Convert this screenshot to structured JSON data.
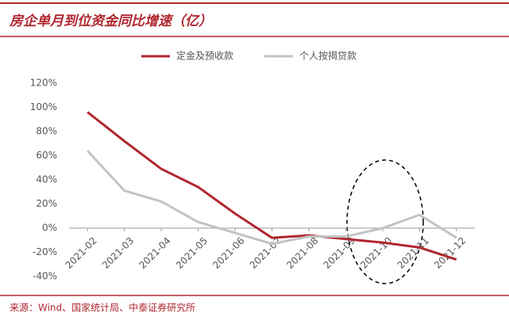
{
  "chart_data": {
    "type": "line",
    "title": "房企单月到位资金同比增速（亿）",
    "source": "来源：Wind、国家统计局、中泰证券研究所",
    "categories": [
      "2021-02",
      "2021-03",
      "2021-04",
      "2021-05",
      "2021-06",
      "2021-07",
      "2021-08",
      "2021-09",
      "2021-10",
      "2021-11",
      "2021-12"
    ],
    "series": [
      {
        "name": "定金及预收款",
        "color": "#b0272f",
        "values": [
          96,
          72,
          49,
          34,
          12,
          -8,
          -6,
          -9,
          -12,
          -16,
          -26
        ]
      },
      {
        "name": "个人按揭贷款",
        "color": "#c3c3c3",
        "values": [
          64,
          31,
          22,
          5,
          -4,
          -13,
          -7,
          -7,
          0,
          11,
          -8
        ]
      }
    ],
    "ylim": [
      -40,
      120
    ],
    "yticks": [
      {
        "value": -40,
        "label": "-40%"
      },
      {
        "value": -20,
        "label": "-20%"
      },
      {
        "value": 0,
        "label": "0%"
      },
      {
        "value": 20,
        "label": "20%"
      },
      {
        "value": 40,
        "label": "40%"
      },
      {
        "value": 60,
        "label": "60%"
      },
      {
        "value": 80,
        "label": "80%"
      },
      {
        "value": 100,
        "label": "100%"
      },
      {
        "value": 120,
        "label": "120%"
      }
    ],
    "legend": "top"
  }
}
